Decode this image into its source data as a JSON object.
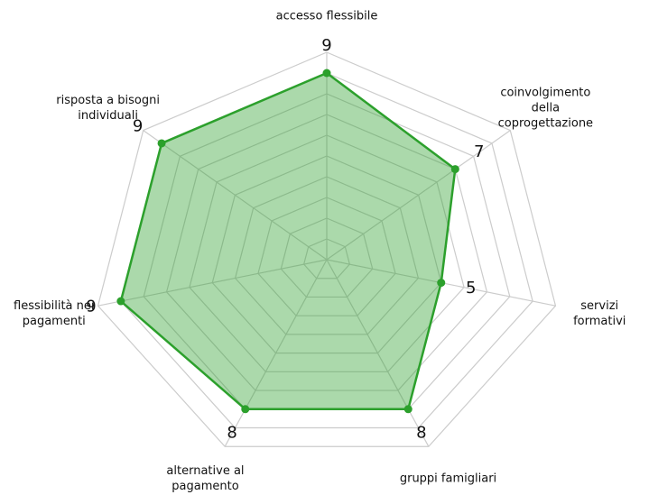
{
  "chart_data": {
    "type": "radar",
    "categories": [
      "accesso flessibile",
      "coinvolgimento della\ncoprogettazione",
      "servizi formativi",
      "gruppi famigliari",
      "alternative al\npagamento",
      "flessibilità nei\npagamenti",
      "risposta a bisogni\nindividuali"
    ],
    "values": [
      9,
      7,
      5,
      8,
      8,
      9,
      9
    ],
    "color": "#2ca02c",
    "rlim": [
      0,
      10
    ],
    "rticks": [
      1,
      2,
      3,
      4,
      5,
      6,
      7,
      8,
      9,
      10
    ],
    "grid": true
  }
}
